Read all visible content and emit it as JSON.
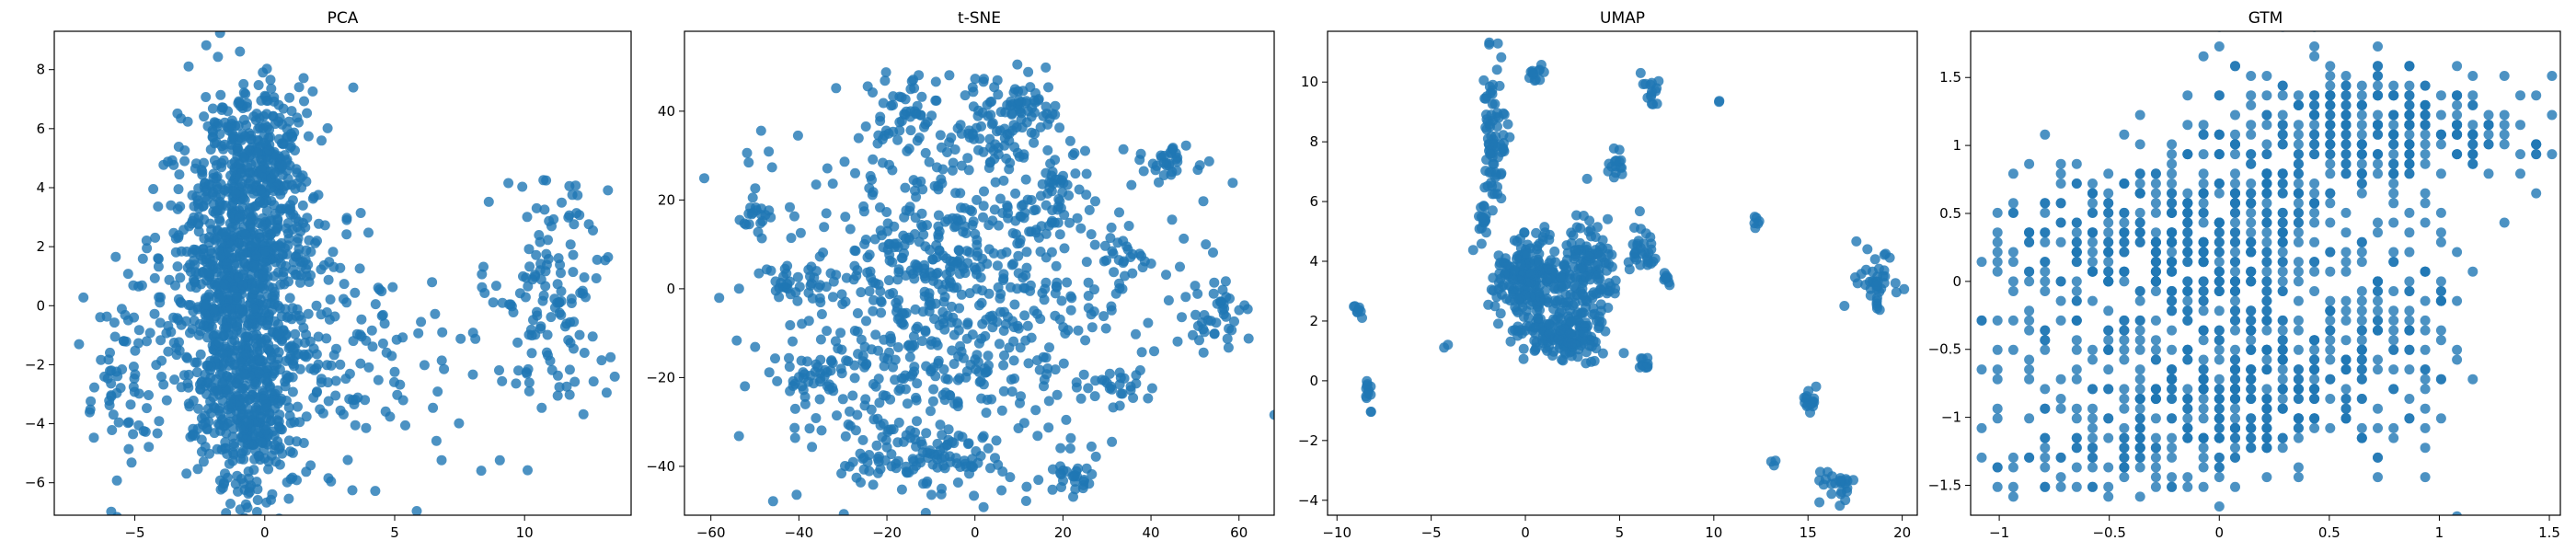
{
  "chart_data": [
    {
      "type": "scatter",
      "title": "PCA",
      "xlim": [
        -8.1,
        14.1
      ],
      "ylim": [
        -7.1,
        9.3
      ],
      "xticks": [
        -5,
        0,
        5,
        10
      ],
      "yticks": [
        -6,
        -4,
        -2,
        0,
        2,
        4,
        6,
        8
      ],
      "color": "#1f77b4",
      "clusters": [
        {
          "cx": -1.0,
          "cy": 0.5,
          "sx": 1.3,
          "sy": 2.9,
          "n": 1100
        },
        {
          "cx": 0.0,
          "cy": 4.8,
          "sx": 1.0,
          "sy": 1.6,
          "n": 220
        },
        {
          "cx": -0.5,
          "cy": -4.2,
          "sx": 0.8,
          "sy": 1.1,
          "n": 160
        },
        {
          "cx": -5.5,
          "cy": -2.3,
          "sx": 0.8,
          "sy": 2.0,
          "n": 70
        },
        {
          "cx": 3.0,
          "cy": -1.5,
          "sx": 1.2,
          "sy": 2.2,
          "n": 90
        },
        {
          "cx": 11.0,
          "cy": 0.3,
          "sx": 1.1,
          "sy": 2.5,
          "n": 140
        },
        {
          "cx": 6.0,
          "cy": -2.5,
          "sx": 1.3,
          "sy": 1.6,
          "n": 25
        }
      ]
    },
    {
      "type": "scatter",
      "title": "t-SNE",
      "xlim": [
        -66,
        68
      ],
      "ylim": [
        -51,
        58
      ],
      "xticks": [
        -60,
        -40,
        -20,
        0,
        20,
        40,
        60
      ],
      "yticks": [
        -40,
        -20,
        0,
        20,
        40
      ],
      "color": "#1f77b4",
      "clusters": [
        {
          "cx": -5,
          "cy": -3,
          "sx": 20,
          "sy": 20,
          "n": 750
        },
        {
          "cx": -15,
          "cy": 40,
          "sx": 6,
          "sy": 4,
          "n": 50
        },
        {
          "cx": 5,
          "cy": 38,
          "sx": 6,
          "sy": 5,
          "n": 60
        },
        {
          "cx": 13,
          "cy": 40,
          "sx": 4,
          "sy": 4,
          "n": 35
        },
        {
          "cx": -18,
          "cy": -38,
          "sx": 6,
          "sy": 4,
          "n": 50
        },
        {
          "cx": -3,
          "cy": -37,
          "sx": 4,
          "sy": 3,
          "n": 30
        },
        {
          "cx": 23,
          "cy": -42,
          "sx": 3,
          "sy": 2,
          "n": 25
        },
        {
          "cx": 44,
          "cy": 29,
          "sx": 3,
          "sy": 2,
          "n": 30
        },
        {
          "cx": 55,
          "cy": -6,
          "sx": 4,
          "sy": 4,
          "n": 40
        },
        {
          "cx": 34,
          "cy": 8,
          "sx": 3,
          "sy": 4,
          "n": 25
        },
        {
          "cx": 33,
          "cy": -22,
          "sx": 3,
          "sy": 2,
          "n": 20
        },
        {
          "cx": -48,
          "cy": 16,
          "sx": 3,
          "sy": 2,
          "n": 20
        },
        {
          "cx": -37,
          "cy": -20,
          "sx": 4,
          "sy": 3,
          "n": 35
        },
        {
          "cx": -40,
          "cy": 1,
          "sx": 4,
          "sy": 3,
          "n": 30
        },
        {
          "cx": 18,
          "cy": 22,
          "sx": 4,
          "sy": 4,
          "n": 40
        }
      ]
    },
    {
      "type": "scatter",
      "title": "UMAP",
      "xlim": [
        -10.5,
        20.8
      ],
      "ylim": [
        -4.5,
        11.7
      ],
      "xticks": [
        -10,
        -5,
        0,
        5,
        10,
        15,
        20
      ],
      "yticks": [
        -4,
        -2,
        0,
        2,
        4,
        6,
        8,
        10
      ],
      "color": "#1f77b4",
      "clusters": [
        {
          "cx": 0.3,
          "cy": 3.3,
          "sx": 0.9,
          "sy": 0.8,
          "n": 220
        },
        {
          "cx": 3.2,
          "cy": 3.5,
          "sx": 0.8,
          "sy": 1.0,
          "n": 150
        },
        {
          "cx": 2.0,
          "cy": 1.5,
          "sx": 1.2,
          "sy": 0.4,
          "n": 140
        },
        {
          "cx": -1.7,
          "cy": 8.0,
          "sx": 0.3,
          "sy": 1.3,
          "n": 80
        },
        {
          "cx": -2.3,
          "cy": 5.5,
          "sx": 0.2,
          "sy": 0.2,
          "n": 15
        },
        {
          "cx": 0.5,
          "cy": 10.2,
          "sx": 0.3,
          "sy": 0.15,
          "n": 12
        },
        {
          "cx": 4.8,
          "cy": 7.2,
          "sx": 0.2,
          "sy": 0.25,
          "n": 15
        },
        {
          "cx": 6.6,
          "cy": 9.8,
          "sx": 0.2,
          "sy": 0.3,
          "n": 15
        },
        {
          "cx": 6.2,
          "cy": 4.5,
          "sx": 0.4,
          "sy": 0.5,
          "n": 30
        },
        {
          "cx": 6.3,
          "cy": 0.6,
          "sx": 0.2,
          "sy": 0.15,
          "n": 10
        },
        {
          "cx": 7.5,
          "cy": 3.3,
          "sx": 0.15,
          "sy": 0.15,
          "n": 8
        },
        {
          "cx": -8.3,
          "cy": -0.6,
          "sx": 0.15,
          "sy": 0.3,
          "n": 12
        },
        {
          "cx": -8.8,
          "cy": 2.6,
          "sx": 0.15,
          "sy": 0.2,
          "n": 8
        },
        {
          "cx": 12.3,
          "cy": 5.3,
          "sx": 0.15,
          "sy": 0.1,
          "n": 6
        },
        {
          "cx": 18.6,
          "cy": 3.2,
          "sx": 0.6,
          "sy": 0.5,
          "n": 40
        },
        {
          "cx": 15.1,
          "cy": -0.6,
          "sx": 0.2,
          "sy": 0.25,
          "n": 15
        },
        {
          "cx": 16.5,
          "cy": -3.5,
          "sx": 0.6,
          "sy": 0.3,
          "n": 25
        },
        {
          "cx": 10.3,
          "cy": 9.3,
          "sx": 0.05,
          "sy": 0.05,
          "n": 2
        },
        {
          "cx": 13.3,
          "cy": -2.8,
          "sx": 0.1,
          "sy": 0.1,
          "n": 3
        },
        {
          "cx": -4.2,
          "cy": 1.2,
          "sx": 0.1,
          "sy": 0.1,
          "n": 2
        }
      ]
    },
    {
      "type": "scatter",
      "title": "GTM",
      "xlim": [
        -1.13,
        1.55
      ],
      "ylim": [
        -1.72,
        1.84
      ],
      "xticks": [
        -1.0,
        -0.5,
        0.0,
        0.5,
        1.0,
        1.5
      ],
      "yticks": [
        -1.5,
        -1.0,
        -0.5,
        0.0,
        0.5,
        1.0,
        1.5
      ],
      "color": "#1f77b4",
      "grid_step": 0.072,
      "clusters": [
        {
          "cx": -0.2,
          "cy": 0.3,
          "sx": 0.35,
          "sy": 0.35,
          "n": 380
        },
        {
          "cx": 0.1,
          "cy": -0.8,
          "sx": 0.35,
          "sy": 0.3,
          "n": 380
        },
        {
          "cx": 0.75,
          "cy": 1.1,
          "sx": 0.35,
          "sy": 0.25,
          "n": 260
        },
        {
          "cx": -0.6,
          "cy": -1.3,
          "sx": 0.25,
          "sy": 0.15,
          "n": 70
        },
        {
          "cx": 0.8,
          "cy": -0.2,
          "sx": 0.2,
          "sy": 0.5,
          "n": 110
        },
        {
          "cx": 0.2,
          "cy": 0.8,
          "sx": 0.2,
          "sy": 0.5,
          "n": 120
        },
        {
          "cx": -0.85,
          "cy": -0.1,
          "sx": 0.15,
          "sy": 0.4,
          "n": 40
        }
      ]
    }
  ]
}
